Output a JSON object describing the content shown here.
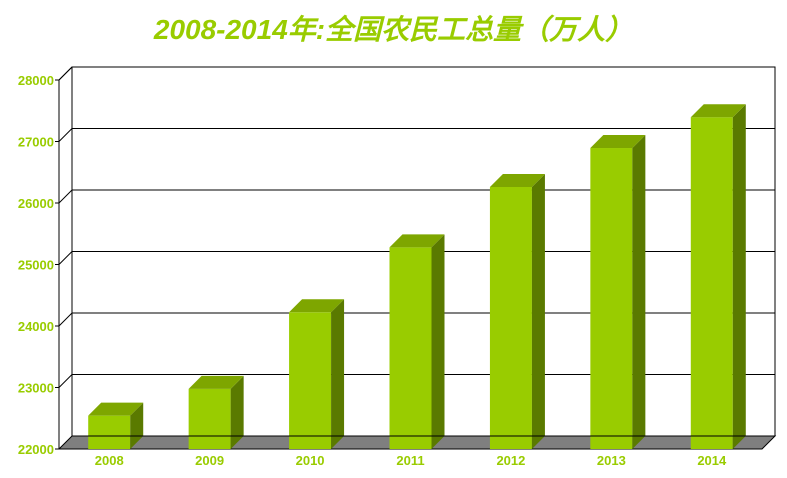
{
  "chart_data": {
    "type": "bar",
    "title": "2008-2014年:全国农民工总量（万人）",
    "xlabel": "",
    "ylabel": "",
    "categories": [
      "2008",
      "2009",
      "2010",
      "2011",
      "2012",
      "2013",
      "2014"
    ],
    "values": [
      22542,
      22978,
      24223,
      25278,
      26261,
      26894,
      27395
    ],
    "ylim": [
      22000,
      28000
    ],
    "yticks": [
      22000,
      23000,
      24000,
      25000,
      26000,
      27000,
      28000
    ],
    "grid": true,
    "legend": "none",
    "colors": {
      "bar_front": "#99cc00",
      "bar_side": "#5a7a00",
      "bar_top": "#7ea600",
      "title": "#99cc00",
      "tick_label": "#99cc00",
      "floor": "#7f7f7f"
    }
  }
}
